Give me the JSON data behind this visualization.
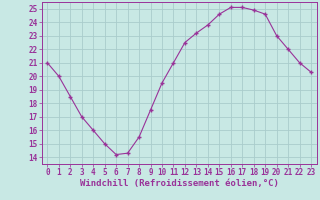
{
  "x": [
    0,
    1,
    2,
    3,
    4,
    5,
    6,
    7,
    8,
    9,
    10,
    11,
    12,
    13,
    14,
    15,
    16,
    17,
    18,
    19,
    20,
    21,
    22,
    23
  ],
  "y": [
    21,
    20,
    18.5,
    17,
    16,
    15,
    14.2,
    14.3,
    15.5,
    17.5,
    19.5,
    21,
    22.5,
    23.2,
    23.8,
    24.6,
    25.1,
    25.1,
    24.9,
    24.6,
    23,
    22,
    21,
    20.3
  ],
  "line_color": "#993399",
  "marker_color": "#993399",
  "bg_color": "#c8e8e4",
  "grid_color": "#aacccc",
  "xlabel": "Windchill (Refroidissement éolien,°C)",
  "xlabel_color": "#993399",
  "ylim": [
    13.5,
    25.5
  ],
  "xlim": [
    -0.5,
    23.5
  ],
  "yticks": [
    14,
    15,
    16,
    17,
    18,
    19,
    20,
    21,
    22,
    23,
    24,
    25
  ],
  "xticks": [
    0,
    1,
    2,
    3,
    4,
    5,
    6,
    7,
    8,
    9,
    10,
    11,
    12,
    13,
    14,
    15,
    16,
    17,
    18,
    19,
    20,
    21,
    22,
    23
  ],
  "tick_color": "#993399",
  "tick_fontsize": 5.5,
  "xlabel_fontsize": 6.5
}
